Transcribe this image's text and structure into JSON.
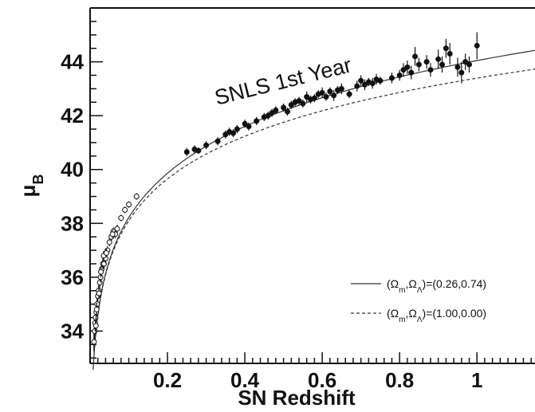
{
  "chart_data": {
    "type": "scatter",
    "xlabel": "SN Redshift",
    "ylabel_main": "μ",
    "ylabel_sub": "B",
    "annotation": "SNLS 1st Year",
    "xlim": [
      0,
      1.15
    ],
    "ylim": [
      32.8,
      46
    ],
    "xticks": [
      0.2,
      0.4,
      0.6,
      0.8,
      1
    ],
    "xtick_labels": [
      "0.2",
      "0.4",
      "0.6",
      "0.8",
      "1"
    ],
    "yticks": [
      34,
      36,
      38,
      40,
      42,
      44
    ],
    "ytick_labels": [
      "34",
      "36",
      "38",
      "40",
      "42",
      "44"
    ],
    "legend_position": "bottom-right",
    "grid": false,
    "series": [
      {
        "label_main": "(Ω",
        "label_m": "m",
        "label_comma": ",Ω",
        "label_l": "Λ",
        "label_tail": ")=(0.26,0.74)",
        "omega_m": 0.26,
        "omega_l": 0.74,
        "style": "solid"
      },
      {
        "label_main": "(Ω",
        "label_m": "m",
        "label_comma": ",Ω",
        "label_l": "Λ",
        "label_tail": ")=(1.00,0.00)",
        "omega_m": 1.0,
        "omega_l": 0.0,
        "style": "dashed"
      }
    ],
    "low_z_points": [
      [
        0.01,
        33.6,
        0.35
      ],
      [
        0.012,
        34.0,
        0.3
      ],
      [
        0.013,
        34.3,
        0.3
      ],
      [
        0.014,
        34.5,
        0.25
      ],
      [
        0.015,
        34.2,
        0.3
      ],
      [
        0.016,
        34.7,
        0.25
      ],
      [
        0.018,
        35.0,
        0.25
      ],
      [
        0.02,
        35.3,
        0.2
      ],
      [
        0.022,
        35.5,
        0.2
      ],
      [
        0.023,
        35.4,
        0.2
      ],
      [
        0.025,
        35.8,
        0.2
      ],
      [
        0.027,
        36.0,
        0.2
      ],
      [
        0.03,
        36.3,
        0.2
      ],
      [
        0.033,
        36.5,
        0.2
      ],
      [
        0.036,
        36.5,
        0.18
      ],
      [
        0.04,
        36.7,
        0.18
      ],
      [
        0.045,
        37.0,
        0.15
      ],
      [
        0.05,
        37.3,
        0.15
      ],
      [
        0.055,
        37.5,
        0.15
      ],
      [
        0.06,
        37.7,
        0.15
      ],
      [
        0.065,
        37.6,
        0.15
      ],
      [
        0.07,
        37.8,
        0.15
      ],
      [
        0.08,
        38.2,
        0.12
      ],
      [
        0.09,
        38.5,
        0.12
      ],
      [
        0.1,
        38.7,
        0.12
      ],
      [
        0.12,
        39.0,
        0.12
      ],
      [
        0.035,
        36.8,
        0.18
      ],
      [
        0.017,
        34.8,
        0.25
      ],
      [
        0.028,
        36.2,
        0.2
      ],
      [
        0.042,
        36.9,
        0.16
      ],
      [
        0.058,
        37.6,
        0.15
      ]
    ],
    "snls_points": [
      [
        0.25,
        40.65,
        0.15
      ],
      [
        0.27,
        40.75,
        0.15
      ],
      [
        0.28,
        40.7,
        0.12
      ],
      [
        0.3,
        40.9,
        0.15
      ],
      [
        0.33,
        41.05,
        0.15
      ],
      [
        0.35,
        41.3,
        0.15
      ],
      [
        0.36,
        41.4,
        0.15
      ],
      [
        0.37,
        41.35,
        0.15
      ],
      [
        0.38,
        41.5,
        0.15
      ],
      [
        0.4,
        41.7,
        0.15
      ],
      [
        0.41,
        41.6,
        0.15
      ],
      [
        0.43,
        41.8,
        0.15
      ],
      [
        0.45,
        41.95,
        0.15
      ],
      [
        0.46,
        42.0,
        0.15
      ],
      [
        0.47,
        42.1,
        0.15
      ],
      [
        0.48,
        42.2,
        0.15
      ],
      [
        0.5,
        42.3,
        0.15
      ],
      [
        0.51,
        42.15,
        0.15
      ],
      [
        0.52,
        42.4,
        0.15
      ],
      [
        0.53,
        42.5,
        0.15
      ],
      [
        0.54,
        42.55,
        0.15
      ],
      [
        0.55,
        42.45,
        0.15
      ],
      [
        0.56,
        42.7,
        0.2
      ],
      [
        0.57,
        42.6,
        0.15
      ],
      [
        0.58,
        42.65,
        0.15
      ],
      [
        0.59,
        42.8,
        0.15
      ],
      [
        0.6,
        42.85,
        0.2
      ],
      [
        0.61,
        42.7,
        0.15
      ],
      [
        0.62,
        42.9,
        0.15
      ],
      [
        0.63,
        42.75,
        0.2
      ],
      [
        0.64,
        42.95,
        0.15
      ],
      [
        0.65,
        43.0,
        0.2
      ],
      [
        0.67,
        42.8,
        0.15
      ],
      [
        0.69,
        43.1,
        0.2
      ],
      [
        0.7,
        43.3,
        0.2
      ],
      [
        0.71,
        43.15,
        0.2
      ],
      [
        0.72,
        43.25,
        0.15
      ],
      [
        0.73,
        43.2,
        0.2
      ],
      [
        0.74,
        43.35,
        0.2
      ],
      [
        0.75,
        43.3,
        0.15
      ],
      [
        0.78,
        43.4,
        0.2
      ],
      [
        0.8,
        43.5,
        0.2
      ],
      [
        0.81,
        43.7,
        0.25
      ],
      [
        0.82,
        43.8,
        0.25
      ],
      [
        0.83,
        43.6,
        0.25
      ],
      [
        0.84,
        44.2,
        0.35
      ],
      [
        0.85,
        43.9,
        0.25
      ],
      [
        0.87,
        44.0,
        0.25
      ],
      [
        0.88,
        43.7,
        0.25
      ],
      [
        0.9,
        44.1,
        0.35
      ],
      [
        0.91,
        43.9,
        0.3
      ],
      [
        0.92,
        44.5,
        0.35
      ],
      [
        0.93,
        44.3,
        0.4
      ],
      [
        0.95,
        43.8,
        0.35
      ],
      [
        0.96,
        43.6,
        0.4
      ],
      [
        0.97,
        44.0,
        0.3
      ],
      [
        0.98,
        43.9,
        0.3
      ],
      [
        1.0,
        44.6,
        0.5
      ]
    ]
  }
}
